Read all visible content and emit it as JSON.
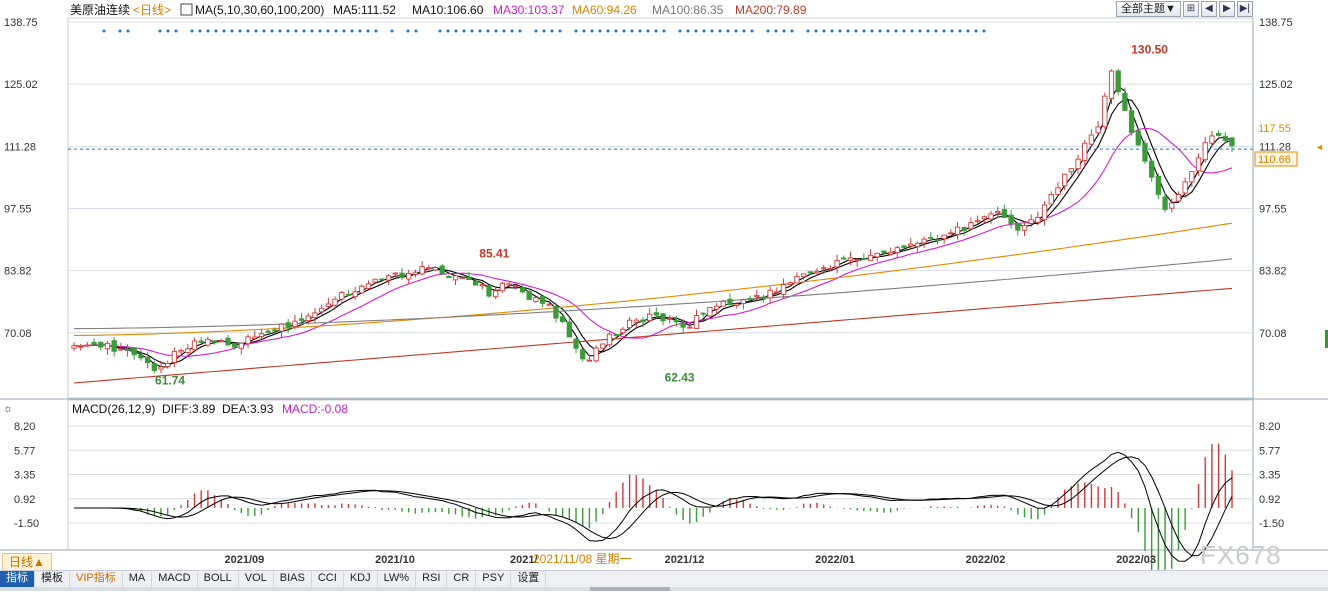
{
  "legend": {
    "symbol": "美原油连续",
    "period_tag": "<日线>",
    "ma_label": "MA(5,10,30,60,100,200)",
    "ma5": "MA5:111.52",
    "ma10": "MA10:106.60",
    "ma30": "MA30:103.37",
    "ma60": "MA60:94.26",
    "ma100": "MA100:86.35",
    "ma200": "MA200:79.89",
    "macd_label": "MACD(26,12,9)",
    "diff": "DIFF:3.89",
    "dea": "DEA:3.93",
    "macd": "MACD:-0.08"
  },
  "toolbar": {
    "theme_button": "全部主题▼",
    "period_button": "日线▲"
  },
  "tabs": [
    "指标",
    "模板",
    "VIP指标",
    "MA",
    "MACD",
    "BOLL",
    "VOL",
    "BIAS",
    "CCI",
    "KDJ",
    "LW%",
    "RSI",
    "CR",
    "PSY",
    "设置"
  ],
  "watermark": "FX678",
  "crosshair_date": "2021/11/08 星期一",
  "colors": {
    "up": "#d33a3a",
    "down": "#3c9a3c",
    "ma5": "#000000",
    "ma10": "#000000",
    "ma30": "#d21ed2",
    "ma60": "#e08a00",
    "ma100": "#808080",
    "ma200": "#c0392b",
    "diff": "#000000",
    "dea": "#000000",
    "grid": "#d7dde6",
    "axis_text": "#333333",
    "dotted_line": "#1f6fc6"
  },
  "chart_data": [
    {
      "type": "candlestick",
      "title": "美原油连续",
      "y_ticks": [
        "138.75",
        "125.02",
        "111.28",
        "97.55",
        "83.82",
        "70.08"
      ],
      "ylim": [
        57.0,
        138.75
      ],
      "x_ticks": [
        "2021/09",
        "2021/10",
        "2021/11",
        "2021/12",
        "2022/01",
        "2022/02",
        "2022/03"
      ],
      "current_price": "110.66",
      "right_tag_price": "117.55",
      "annotations": [
        {
          "label": "130.50",
          "value": 130.5,
          "type": "high"
        },
        {
          "label": "85.41",
          "value": 85.41,
          "type": "high"
        },
        {
          "label": "61.74",
          "value": 61.74,
          "type": "low"
        },
        {
          "label": "62.43",
          "value": 62.43,
          "type": "low"
        }
      ],
      "series": [
        {
          "name": "MA5",
          "last": 111.52
        },
        {
          "name": "MA10",
          "last": 106.6
        },
        {
          "name": "MA30",
          "last": 103.37
        },
        {
          "name": "MA60",
          "last": 94.26
        },
        {
          "name": "MA100",
          "last": 86.35
        },
        {
          "name": "MA200",
          "last": 79.89
        }
      ]
    },
    {
      "type": "macd",
      "title": "MACD(26,12,9)",
      "y_ticks": [
        "8.20",
        "5.77",
        "3.35",
        "0.92",
        "-1.50"
      ],
      "ylim": [
        -4.0,
        9.0
      ],
      "last": {
        "diff": 3.89,
        "dea": 3.93,
        "macd": -0.08
      }
    }
  ]
}
